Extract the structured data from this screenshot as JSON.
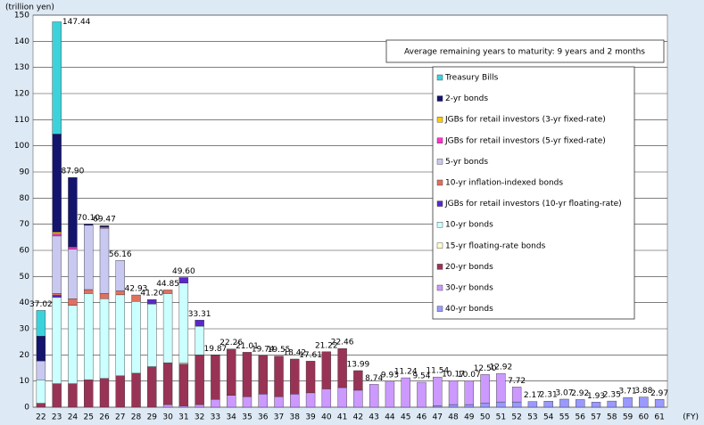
{
  "chart_data": {
    "type": "stacked_bar",
    "y_unit_label": "(trillion yen)",
    "x_unit_label": "(FY)",
    "annotation": "Average remaining years to maturity: 9 years and 2 months",
    "categories": [
      "22",
      "23",
      "24",
      "25",
      "26",
      "27",
      "28",
      "29",
      "30",
      "31",
      "32",
      "33",
      "34",
      "35",
      "36",
      "37",
      "38",
      "39",
      "40",
      "41",
      "42",
      "43",
      "44",
      "45",
      "46",
      "47",
      "48",
      "49",
      "50",
      "51",
      "52",
      "53",
      "54",
      "55",
      "56",
      "57",
      "58",
      "59",
      "60",
      "61"
    ],
    "totals": [
      37.02,
      147.44,
      87.9,
      70.1,
      69.47,
      56.16,
      42.93,
      41.2,
      44.85,
      49.6,
      33.31,
      19.87,
      22.26,
      21.01,
      19.74,
      19.55,
      18.42,
      17.61,
      21.22,
      22.46,
      13.99,
      8.74,
      9.93,
      11.24,
      9.54,
      11.54,
      10.17,
      10.07,
      12.5,
      12.92,
      7.72,
      2.17,
      2.31,
      3.07,
      2.92,
      1.93,
      2.35,
      3.71,
      3.88,
      2.97
    ],
    "total_labels": [
      "37.02",
      "147.44",
      "87.90",
      "70.10",
      "69.47",
      "56.16",
      "42.93",
      "41.20",
      "44.85",
      "49.60",
      "33.31",
      "19.87",
      "22.26",
      "21.01",
      "19.74",
      "19.55",
      "18.42",
      "17.61",
      "21.22",
      "22.46",
      "13.99",
      "8.74",
      "9.93",
      "11.24",
      "9.54",
      "11.54",
      "10.17",
      "10.07",
      "12.50",
      "12.92",
      "7.72",
      "2.17",
      "2.31",
      "3.07",
      "2.92",
      "1.93",
      "2.35",
      "3.71",
      "3.88",
      "2.97"
    ],
    "series": [
      {
        "name": "Treasury Bills",
        "color": "#3cd2dc",
        "values": [
          9.82,
          42.94,
          0,
          0,
          0,
          0,
          0,
          0,
          0,
          0,
          0,
          0,
          0,
          0,
          0,
          0,
          0,
          0,
          0,
          0,
          0,
          0,
          0,
          0,
          0,
          0,
          0,
          0,
          0,
          0,
          0,
          0,
          0,
          0,
          0,
          0,
          0,
          0,
          0,
          0
        ]
      },
      {
        "name": "2-yr bonds",
        "color": "#14146e",
        "values": [
          9.5,
          37.5,
          26.6,
          0.5,
          0.47,
          0,
          0,
          0,
          0,
          0,
          0,
          0,
          0,
          0,
          0,
          0,
          0,
          0,
          0,
          0,
          0,
          0,
          0,
          0,
          0,
          0,
          0,
          0,
          0,
          0,
          0,
          0,
          0,
          0,
          0,
          0,
          0,
          0,
          0,
          0
        ]
      },
      {
        "name": "JGBs for retail investors (3-yr fixed-rate)",
        "color": "#ffcc00",
        "values": [
          0,
          0.7,
          0,
          0,
          0,
          0,
          0,
          0,
          0,
          0,
          0,
          0,
          0,
          0,
          0,
          0,
          0,
          0,
          0,
          0,
          0,
          0,
          0,
          0,
          0,
          0,
          0,
          0,
          0,
          0,
          0,
          0,
          0,
          0,
          0,
          0,
          0,
          0,
          0,
          0
        ]
      },
      {
        "name": "JGBs for retail investors (5-yr fixed-rate)",
        "color": "#ff33cc",
        "values": [
          0,
          0.8,
          0.8,
          0,
          0.5,
          0,
          0,
          0,
          0,
          0,
          0,
          0,
          0,
          0,
          0,
          0,
          0,
          0,
          0,
          0,
          0,
          0,
          0,
          0,
          0,
          0,
          0,
          0,
          0,
          0,
          0,
          0,
          0,
          0,
          0,
          0,
          0,
          0,
          0,
          0
        ]
      },
      {
        "name": "5-yr bonds",
        "color": "#c8c8f0",
        "values": [
          7.2,
          22,
          19,
          24.6,
          25,
          11.66,
          0,
          0,
          0,
          0,
          0,
          0,
          0,
          0,
          0,
          0,
          0,
          0,
          0,
          0,
          0,
          0,
          0,
          0,
          0,
          0,
          0,
          0,
          0,
          0,
          0,
          0,
          0,
          0,
          0,
          0,
          0,
          0,
          0,
          0
        ]
      },
      {
        "name": "10-yr inflation-indexed bonds",
        "color": "#e07060",
        "values": [
          0,
          0.7,
          2.5,
          1.5,
          2,
          1.5,
          2.43,
          0,
          1.35,
          0,
          0,
          0,
          0,
          0,
          0,
          0,
          0,
          0,
          0,
          0,
          0,
          0,
          0,
          0,
          0,
          0,
          0,
          0,
          0,
          0,
          0,
          0,
          0,
          0,
          0,
          0,
          0,
          0,
          0,
          0
        ]
      },
      {
        "name": "JGBs for retail investors (10-yr floating-rate)",
        "color": "#5a28c8",
        "values": [
          0,
          0.8,
          0,
          0,
          0,
          0,
          0,
          1.7,
          0,
          2.1,
          2.31,
          0,
          0,
          0,
          0,
          0,
          0,
          0,
          0,
          0,
          0,
          0,
          0,
          0,
          0,
          0,
          0,
          0,
          0,
          0,
          0,
          0,
          0,
          0,
          0,
          0,
          0,
          0,
          0,
          0
        ]
      },
      {
        "name": "10-yr bonds",
        "color": "#ccffff",
        "values": [
          9,
          33,
          30,
          33,
          30.5,
          31,
          27.5,
          24,
          26.5,
          30.5,
          11,
          0,
          0,
          0,
          0,
          0,
          0,
          0,
          0,
          0,
          0,
          0,
          0,
          0,
          0,
          0,
          0,
          0,
          0,
          0,
          0,
          0,
          0,
          0,
          0,
          0,
          0,
          0,
          0,
          0
        ]
      },
      {
        "name": "15-yr floating-rate bonds",
        "color": "#ffffcc",
        "values": [
          0,
          0,
          0,
          0,
          0,
          0,
          0,
          0,
          0,
          0.5,
          0,
          0,
          0,
          0,
          0,
          0,
          0,
          0,
          0,
          0,
          0,
          0,
          0,
          0,
          0,
          0,
          0,
          0,
          0,
          0,
          0,
          0,
          0,
          0,
          0,
          0,
          0,
          0,
          0,
          0
        ]
      },
      {
        "name": "20-yr bonds",
        "color": "#993355",
        "values": [
          1.5,
          9,
          9,
          10.5,
          11,
          12,
          13,
          15.5,
          16,
          16,
          19,
          16.87,
          17.76,
          17.01,
          14.74,
          15.55,
          13.42,
          12.11,
          14.22,
          14.96,
          7.49,
          0,
          0,
          0,
          0,
          0,
          0,
          0,
          0,
          0,
          0,
          0,
          0,
          0,
          0,
          0,
          0,
          0,
          0,
          0
        ]
      },
      {
        "name": "30-yr bonds",
        "color": "#cc99ff",
        "values": [
          0,
          0,
          0,
          0,
          0,
          0,
          0,
          0,
          1,
          0.5,
          1,
          3,
          4.5,
          4,
          5,
          4,
          5,
          5.5,
          7,
          7.5,
          6.5,
          8.74,
          9.93,
          11.24,
          9.54,
          11.04,
          9.17,
          9.07,
          11,
          10.92,
          5.72,
          0,
          0,
          0,
          0,
          0,
          0,
          0,
          0,
          0
        ]
      },
      {
        "name": "40-yr bonds",
        "color": "#9999ff",
        "values": [
          0,
          0,
          0,
          0,
          0,
          0,
          0,
          0,
          0,
          0,
          0,
          0,
          0,
          0,
          0,
          0,
          0,
          0,
          0,
          0,
          0,
          0,
          0,
          0,
          0,
          0.5,
          1,
          1,
          1.5,
          2,
          2,
          2.17,
          2.31,
          3.07,
          2.92,
          1.93,
          2.35,
          3.71,
          3.88,
          2.97
        ]
      }
    ],
    "ylim": [
      0,
      150
    ],
    "yticks": [
      0,
      10,
      20,
      30,
      40,
      50,
      60,
      70,
      80,
      90,
      100,
      110,
      120,
      130,
      140,
      150
    ],
    "grid": true
  }
}
